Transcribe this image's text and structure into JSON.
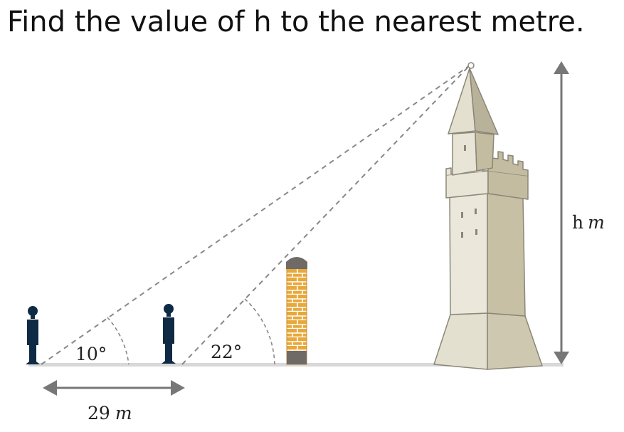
{
  "question": "Find the value of h to the nearest metre.",
  "labels": {
    "angle_far": "10°",
    "angle_near": "22°",
    "distance_value": "29",
    "distance_unit": "m",
    "height_var": "h",
    "height_unit": "m"
  },
  "colors": {
    "person": "#0f2a44",
    "ground": "#d8d8d8",
    "arrow": "#777777",
    "sight_line": "#888888",
    "brick": "#e8a83a",
    "brick_mortar": "#ffffff",
    "chimney_cap": "#6f6a66",
    "tower_light": "#e4e0d0",
    "tower_mid": "#d3cdb8",
    "tower_dark": "#b9b29a",
    "tower_outline": "#8a8678"
  }
}
